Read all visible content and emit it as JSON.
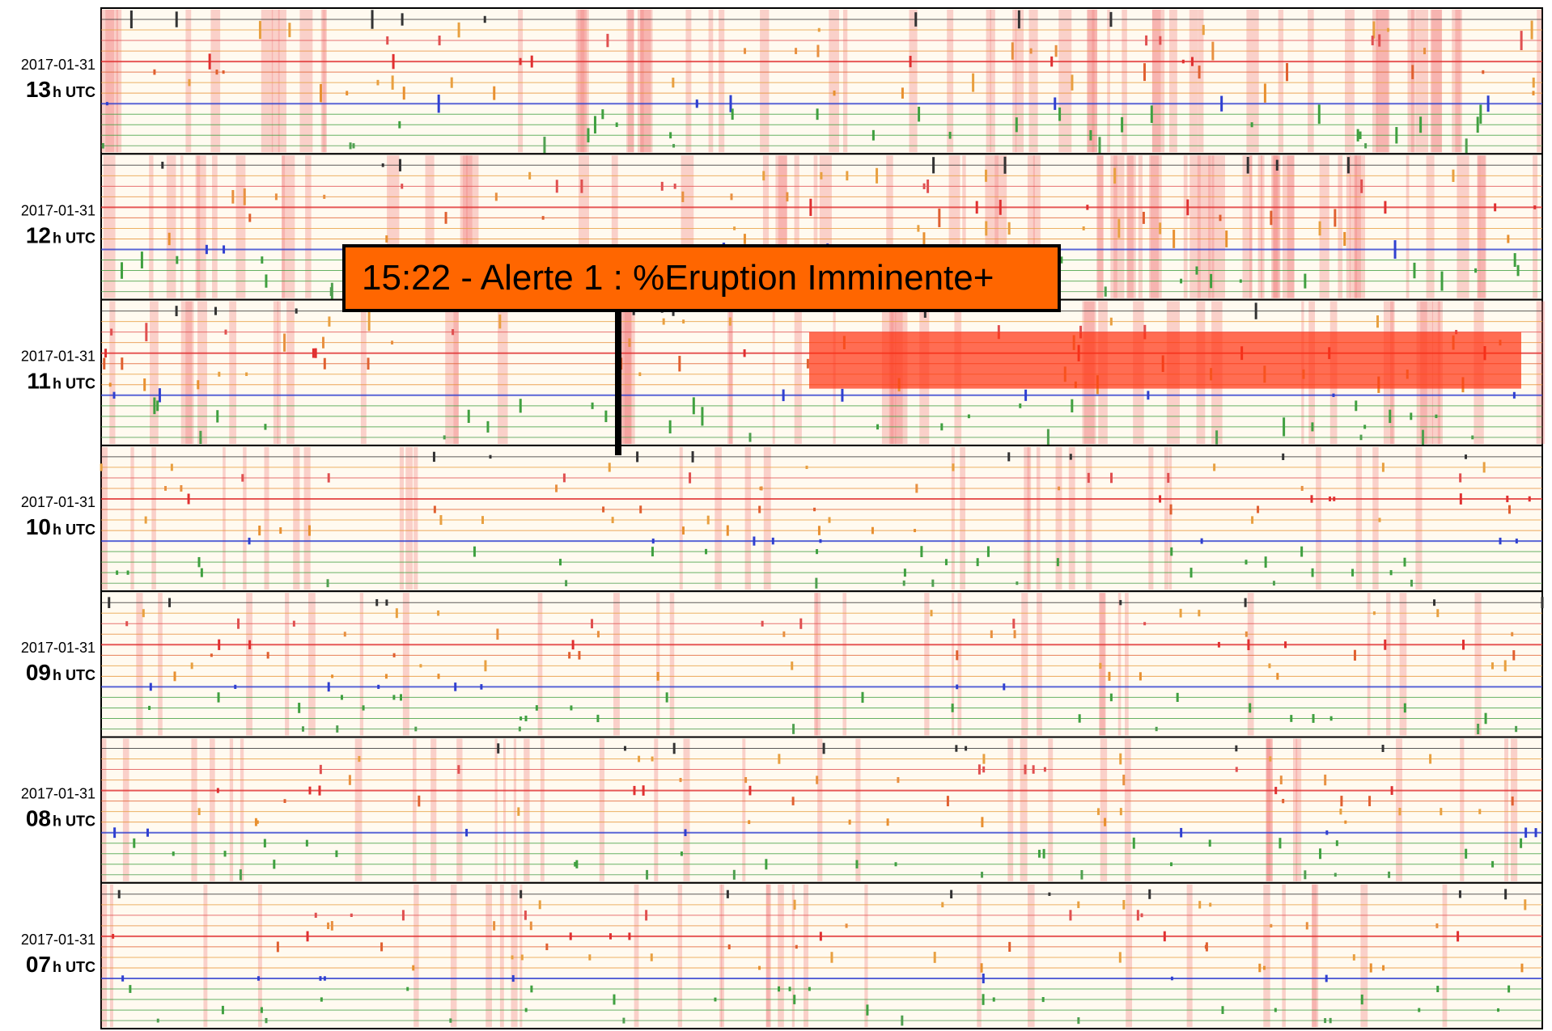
{
  "rows": [
    {
      "date": "2017-01-31",
      "hour": "13",
      "unit": "h UTC"
    },
    {
      "date": "2017-01-31",
      "hour": "12",
      "unit": "h UTC"
    },
    {
      "date": "2017-01-31",
      "hour": "11",
      "unit": "h UTC"
    },
    {
      "date": "2017-01-31",
      "hour": "10",
      "unit": "h UTC"
    },
    {
      "date": "2017-01-31",
      "hour": "09",
      "unit": "h UTC"
    },
    {
      "date": "2017-01-31",
      "hour": "08",
      "unit": "h UTC"
    },
    {
      "date": "2017-01-31",
      "hour": "07",
      "unit": "h UTC"
    }
  ],
  "alert": {
    "text": "15:22 - Alerte 1 : %Eruption Imminente+"
  }
}
